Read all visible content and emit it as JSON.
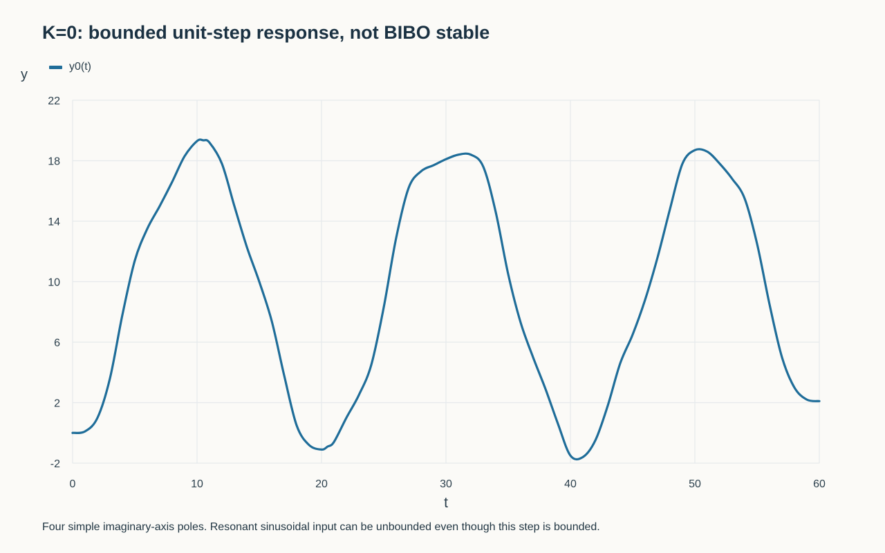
{
  "chart_data": {
    "type": "line",
    "title": "K=0: bounded unit-step response, not BIBO stable",
    "xlabel": "t",
    "ylabel": "y",
    "xlim": [
      0,
      60
    ],
    "ylim": [
      -2,
      22
    ],
    "xticks": [
      0,
      10,
      20,
      30,
      40,
      50,
      60
    ],
    "yticks": [
      -2,
      2,
      6,
      10,
      14,
      18,
      22
    ],
    "grid": true,
    "legend_position": "top-left",
    "series": [
      {
        "name": "y0(t)",
        "color": "#1f6d99",
        "x": [
          0,
          1,
          2,
          3,
          4,
          5,
          6,
          7,
          8,
          9,
          10,
          10.5,
          11,
          12,
          13,
          14,
          15,
          16,
          17,
          18,
          19,
          20,
          20.5,
          21,
          22,
          23,
          24,
          25,
          26,
          27,
          28,
          29,
          30,
          31,
          32,
          33,
          34,
          35,
          36,
          37,
          38,
          39,
          40,
          41,
          42,
          43,
          44,
          45,
          46,
          47,
          48,
          49,
          50,
          51,
          52,
          53,
          54,
          55,
          56,
          57,
          58,
          59,
          60
        ],
        "y": [
          0,
          0.1,
          1.0,
          3.6,
          7.8,
          11.4,
          13.5,
          15.0,
          16.6,
          18.3,
          19.3,
          19.35,
          19.2,
          17.8,
          15.0,
          12.3,
          10.0,
          7.4,
          3.8,
          0.5,
          -0.8,
          -1.1,
          -0.9,
          -0.6,
          1.0,
          2.5,
          4.5,
          8.3,
          12.9,
          16.2,
          17.3,
          17.7,
          18.1,
          18.4,
          18.4,
          17.6,
          14.6,
          10.5,
          7.3,
          5.0,
          2.9,
          0.6,
          -1.5,
          -1.6,
          -0.5,
          1.8,
          4.6,
          6.5,
          8.8,
          11.6,
          14.8,
          17.8,
          18.7,
          18.6,
          17.8,
          16.8,
          15.5,
          12.5,
          8.5,
          5.0,
          3.0,
          2.2,
          2.1
        ]
      }
    ]
  },
  "caption": "Four simple imaginary-axis poles. Resonant sinusoidal input can be unbounded even though this step is bounded."
}
